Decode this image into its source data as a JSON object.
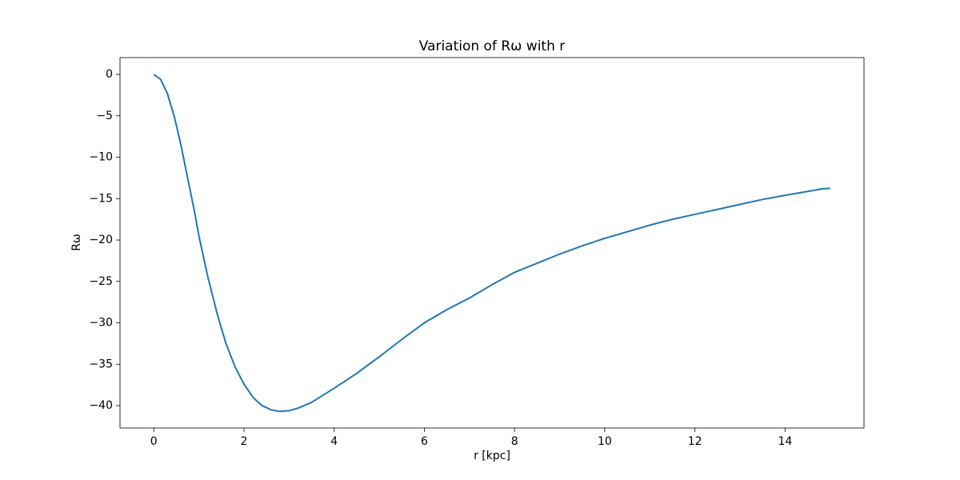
{
  "chart_data": {
    "type": "line",
    "title": "Variation of Rω with r",
    "xlabel": "r [kpc]",
    "ylabel": "Rω",
    "x": [
      0,
      0.15,
      0.3,
      0.45,
      0.6,
      0.75,
      0.9,
      1.0,
      1.2,
      1.4,
      1.6,
      1.8,
      2.0,
      2.2,
      2.4,
      2.6,
      2.8,
      3.0,
      3.2,
      3.5,
      4.0,
      4.5,
      5.0,
      5.5,
      6.0,
      6.5,
      7.0,
      7.5,
      8.0,
      8.5,
      9.0,
      9.5,
      10.0,
      10.5,
      11.0,
      11.5,
      12.0,
      12.5,
      13.0,
      13.5,
      14.0,
      14.85,
      15.0
    ],
    "series": [
      {
        "name": "Rω",
        "color": "#1f77b4",
        "values": [
          0,
          -0.6,
          -2.3,
          -5,
          -8.5,
          -12.5,
          -16.5,
          -19.5,
          -24.5,
          -28.8,
          -32.5,
          -35.3,
          -37.4,
          -39,
          -40,
          -40.5,
          -40.7,
          -40.6,
          -40.3,
          -39.6,
          -37.9,
          -36.1,
          -34.1,
          -32,
          -30,
          -28.4,
          -27,
          -25.4,
          -23.9,
          -22.8,
          -21.7,
          -20.7,
          -19.8,
          -19,
          -18.2,
          -17.5,
          -16.9,
          -16.3,
          -15.7,
          -15.1,
          -14.6,
          -13.8,
          -13.75
        ]
      }
    ],
    "xlim": [
      -0.75,
      15.75
    ],
    "ylim": [
      -42.7,
      2.03
    ],
    "xticks": [
      0,
      2,
      4,
      6,
      8,
      10,
      12,
      14
    ],
    "yticks": [
      0,
      {
        "value": -5,
        "label": "−5"
      },
      {
        "value": -10,
        "label": "−10"
      },
      {
        "value": -15,
        "label": "−15"
      },
      {
        "value": -20,
        "label": "−20"
      },
      {
        "value": -25,
        "label": "−25"
      },
      {
        "value": -30,
        "label": "−30"
      },
      {
        "value": -35,
        "label": "−35"
      },
      {
        "value": -40,
        "label": "−40"
      }
    ],
    "grid": false
  }
}
